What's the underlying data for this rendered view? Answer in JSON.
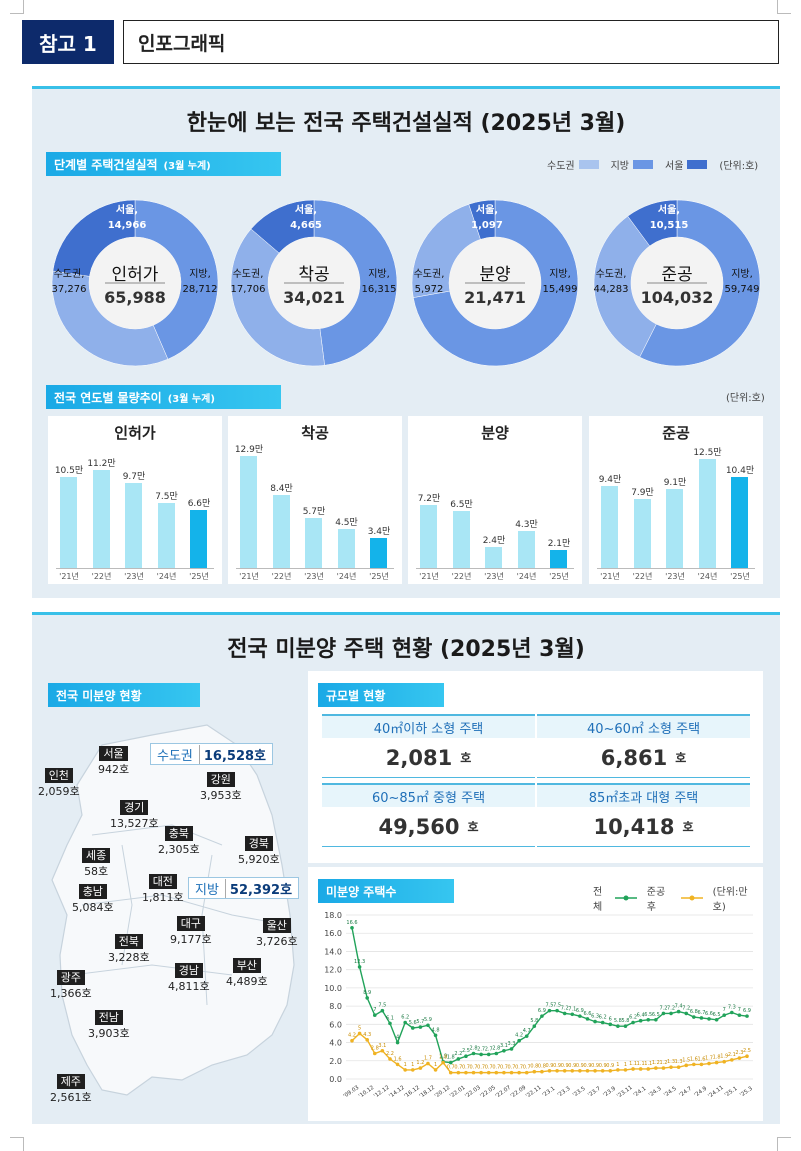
{
  "header": {
    "tag": "참고 1",
    "title": "인포그래픽"
  },
  "section1": {
    "title": "한눈에 보는 전국 주택건설실적 (2025년 3월)",
    "ribbon1": "단계별 주택건설실적",
    "ribbon1_note": "(3월 누계)",
    "legend": [
      {
        "label": "수도권",
        "color": "#a9c4ee"
      },
      {
        "label": "지방",
        "color": "#6a96e4"
      },
      {
        "label": "서울",
        "color": "#3f6fce"
      }
    ],
    "unit1": "(단위:호)",
    "ribbon2": "전국 연도별 물량추이",
    "ribbon2_note": "(3월 누계)",
    "unit2": "(단위:호)"
  },
  "donuts": [
    {
      "name": "인허가",
      "total": "65,988",
      "seoul_label": "서울,",
      "seoul": "14,966",
      "metro_label": "수도권,",
      "metro": "37,276",
      "local_label": "지방,",
      "local": "28,712",
      "v_metro": 37276,
      "v_seoul": 14966,
      "v_local": 28712
    },
    {
      "name": "착공",
      "total": "34,021",
      "seoul_label": "서울,",
      "seoul": "4,665",
      "metro_label": "수도권,",
      "metro": "17,706",
      "local_label": "지방,",
      "local": "16,315",
      "v_metro": 17706,
      "v_seoul": 4665,
      "v_local": 16315
    },
    {
      "name": "분양",
      "total": "21,471",
      "seoul_label": "서울,",
      "seoul": "1,097",
      "metro_label": "수도권,",
      "metro": "5,972",
      "local_label": "지방,",
      "local": "15,499",
      "v_metro": 5972,
      "v_seoul": 1097,
      "v_local": 15499
    },
    {
      "name": "준공",
      "total": "104,032",
      "seoul_label": "서울,",
      "seoul": "10,515",
      "metro_label": "수도권,",
      "metro": "44,283",
      "local_label": "지방,",
      "local": "59,749",
      "v_metro": 44283,
      "v_seoul": 10515,
      "v_local": 59749
    }
  ],
  "bar_charts": [
    {
      "title": "인허가",
      "categories": [
        "'21년",
        "'22년",
        "'23년",
        "'24년",
        "'25년"
      ],
      "values": [
        10.5,
        11.2,
        9.7,
        7.5,
        6.6
      ],
      "labels": [
        "10.5만",
        "11.2만",
        "9.7만",
        "7.5만",
        "6.6만"
      ]
    },
    {
      "title": "착공",
      "categories": [
        "'21년",
        "'22년",
        "'23년",
        "'24년",
        "'25년"
      ],
      "values": [
        12.9,
        8.4,
        5.7,
        4.5,
        3.4
      ],
      "labels": [
        "12.9만",
        "8.4만",
        "5.7만",
        "4.5만",
        "3.4만"
      ]
    },
    {
      "title": "분양",
      "categories": [
        "'21년",
        "'22년",
        "'23년",
        "'24년",
        "'25년"
      ],
      "values": [
        7.2,
        6.5,
        2.4,
        4.3,
        2.1
      ],
      "labels": [
        "7.2만",
        "6.5만",
        "2.4만",
        "4.3만",
        "2.1만"
      ]
    },
    {
      "title": "준공",
      "categories": [
        "'21년",
        "'22년",
        "'23년",
        "'24년",
        "'25년"
      ],
      "values": [
        9.4,
        7.9,
        9.1,
        12.5,
        10.4
      ],
      "labels": [
        "9.4만",
        "7.9만",
        "9.1만",
        "12.5만",
        "10.4만"
      ]
    }
  ],
  "section2": {
    "title": "전국 미분양 주택 현황 (2025년 3월)",
    "ribbon_map": "전국 미분양 현황",
    "metro_box": {
      "label": "수도권",
      "value": "16,528호"
    },
    "local_box": {
      "label": "지방",
      "value": "52,392호"
    },
    "cities": [
      {
        "name": "서울",
        "value": "942호"
      },
      {
        "name": "인천",
        "value": "2,059호"
      },
      {
        "name": "강원",
        "value": "3,953호"
      },
      {
        "name": "경기",
        "value": "13,527호"
      },
      {
        "name": "충북",
        "value": "2,305호"
      },
      {
        "name": "경북",
        "value": "5,920호"
      },
      {
        "name": "세종",
        "value": "58호"
      },
      {
        "name": "대전",
        "value": "1,811호"
      },
      {
        "name": "충남",
        "value": "5,084호"
      },
      {
        "name": "대구",
        "value": "9,177호"
      },
      {
        "name": "울산",
        "value": "3,726호"
      },
      {
        "name": "전북",
        "value": "3,228호"
      },
      {
        "name": "경남",
        "value": "4,811호"
      },
      {
        "name": "부산",
        "value": "4,489호"
      },
      {
        "name": "광주",
        "value": "1,366호"
      },
      {
        "name": "전남",
        "value": "3,903호"
      },
      {
        "name": "제주",
        "value": "2,561호"
      }
    ],
    "ribbon_size": "규모별 현황",
    "sizes": [
      {
        "label": "40㎡이하 소형 주택",
        "value": "2,081",
        "unit": "호"
      },
      {
        "label": "40~60㎡ 소형 주택",
        "value": "6,861",
        "unit": "호"
      },
      {
        "label": "60~85㎡ 중형 주택",
        "value": "49,560",
        "unit": "호"
      },
      {
        "label": "85㎡초과 대형 주택",
        "value": "10,418",
        "unit": "호"
      }
    ],
    "ribbon_line": "미분양 주택수",
    "line_legend": {
      "total": "전체",
      "after": "준공 후",
      "unit": "(단위:만 호)"
    }
  },
  "chart_data": [
    {
      "type": "line",
      "title": "미분양 주택수",
      "ylabel": "",
      "ylim": [
        0,
        18
      ],
      "yticks": [
        "0.0",
        "2.0",
        "4.0",
        "6.0",
        "8.0",
        "10.0",
        "12.0",
        "14.0",
        "16.0",
        "18.0"
      ],
      "xticks": [
        "'09.03",
        "'10.12",
        "'12.12",
        "'14.12",
        "'16.12",
        "'18.12",
        "'20.12",
        "'22.01",
        "'22.03",
        "'22.05",
        "'22.07",
        "'22.09",
        "'22.11",
        "'23.1",
        "'23.3",
        "'23.5",
        "'23.7",
        "'23.9",
        "'23.11",
        "'24.1",
        "'24.3",
        "'24.5",
        "'24.7",
        "'24.9",
        "'24.11",
        "'25.1",
        "'25.3"
      ],
      "series": [
        {
          "name": "전체",
          "color": "#21a35a",
          "values": [
            16.6,
            12.3,
            8.9,
            7.0,
            7.5,
            6.1,
            4.0,
            6.2,
            5.6,
            5.7,
            5.9,
            4.8,
            1.9,
            1.8,
            2.2,
            2.5,
            2.8,
            2.7,
            2.7,
            2.8,
            3.1,
            3.3,
            4.2,
            4.7,
            5.8,
            6.9,
            7.5,
            7.5,
            7.2,
            7.1,
            6.9,
            6.6,
            6.3,
            6.2,
            6.0,
            5.8,
            5.8,
            6.2,
            6.4,
            6.5,
            6.5,
            7.2,
            7.2,
            7.4,
            7.2,
            6.8,
            6.7,
            6.6,
            6.5,
            7.0,
            7.3,
            7.0,
            6.9
          ]
        },
        {
          "name": "준공 후",
          "color": "#f0b323",
          "values": [
            4.2,
            5.0,
            4.3,
            2.8,
            3.1,
            2.2,
            1.6,
            1.0,
            1.0,
            1.2,
            1.7,
            1.0,
            1.8,
            0.7,
            0.7,
            0.7,
            0.7,
            0.7,
            0.7,
            0.7,
            0.7,
            0.7,
            0.7,
            0.7,
            0.8,
            0.8,
            0.9,
            0.9,
            0.9,
            0.9,
            0.9,
            0.9,
            0.9,
            0.9,
            0.9,
            1.0,
            1.0,
            1.1,
            1.1,
            1.1,
            1.2,
            1.2,
            1.3,
            1.3,
            1.5,
            1.6,
            1.6,
            1.7,
            1.8,
            1.9,
            2.1,
            2.3,
            2.5
          ]
        }
      ]
    }
  ]
}
